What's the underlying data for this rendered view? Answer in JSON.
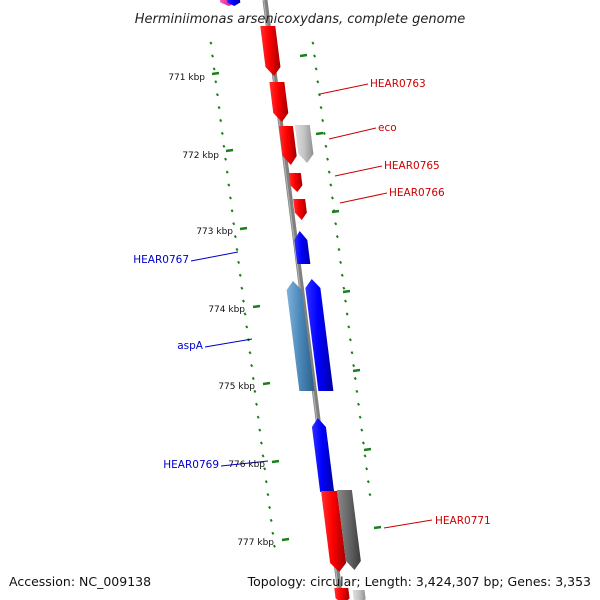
{
  "title": "Herminiimonas arsenicoxydans, complete genome",
  "footer": {
    "accession": "Accession: NC_009138",
    "topology": "Topology: circular; Length: 3,424,307 bp; Genes: 3,353"
  },
  "ticks": [
    "771 kbp",
    "772 kbp",
    "773 kbp",
    "774 kbp",
    "775 kbp",
    "776 kbp",
    "777 kbp"
  ],
  "gene_labels": [
    "HEAR0763",
    "eco",
    "HEAR0765",
    "HEAR0766",
    "HEAR0767",
    "aspA",
    "HEAR0769",
    "HEAR0771"
  ],
  "colors": {
    "forward_gene": "#ff0000",
    "reverse_gene": "#0000ff",
    "rna_gene_light": "#bbbbbb",
    "rna_gene_dark": "#666666",
    "aspA_gene": "#4a86b8",
    "backbone": "#808080",
    "tick": "#1a7f1a",
    "forward_label": "#cc0000",
    "reverse_label": "#0000cc"
  }
}
